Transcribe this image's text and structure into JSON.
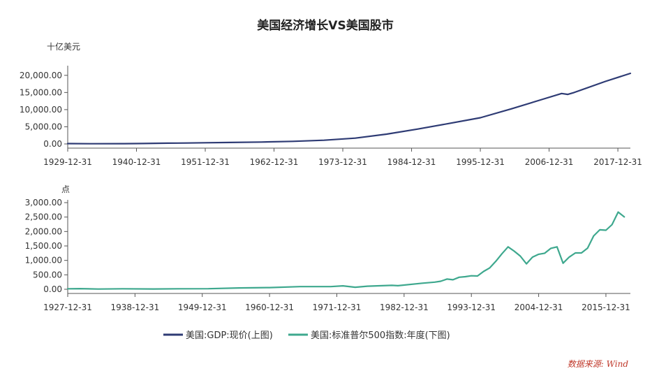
{
  "title": "美国经济增长VS美国股市",
  "source": "数据来源: Wind",
  "colors": {
    "gdp": "#2e3b74",
    "sp500": "#3ea88e",
    "axis": "#555555",
    "source": "#c0392b"
  },
  "chart_data": [
    {
      "type": "line",
      "panel": "top",
      "y_unit_label": "十亿美元",
      "ylim": [
        0,
        22000
      ],
      "yticks": [
        0,
        5000,
        10000,
        15000,
        20000
      ],
      "ytick_labels": [
        "0.00",
        "5,000.00",
        "10,000.00",
        "15,000.00",
        "20,000.00"
      ],
      "x_range": [
        1929,
        2019
      ],
      "xticks": [
        1929,
        1940,
        1951,
        1962,
        1973,
        1984,
        1995,
        2006,
        2017
      ],
      "xtick_labels": [
        "1929-12-31",
        "1940-12-31",
        "1951-12-31",
        "1962-12-31",
        "1973-12-31",
        "1984-12-31",
        "1995-12-31",
        "2006-12-31",
        "2017-12-31"
      ],
      "grid": false,
      "series": [
        {
          "name": "美国:GDP:现价(上图)",
          "color": "#2e3b74",
          "x": [
            1929,
            1933,
            1938,
            1941,
            1945,
            1948,
            1951,
            1955,
            1960,
            1965,
            1970,
            1975,
            1980,
            1985,
            1990,
            1995,
            2000,
            2005,
            2008,
            2009,
            2010,
            2015,
            2019
          ],
          "y": [
            105,
            57,
            87,
            129,
            228,
            275,
            348,
            426,
            543,
            744,
            1073,
            1685,
            2857,
            4339,
            5963,
            7640,
            10252,
            13037,
            14712,
            14449,
            14992,
            18225,
            20580
          ]
        }
      ]
    },
    {
      "type": "line",
      "panel": "bottom",
      "y_unit_label": "点",
      "ylim": [
        0,
        3000
      ],
      "yticks": [
        0,
        500,
        1000,
        1500,
        2000,
        2500,
        3000
      ],
      "ytick_labels": [
        "0.00",
        "500.00",
        "1,000.00",
        "1,500.00",
        "2,000.00",
        "2,500.00",
        "3,000.00"
      ],
      "x_range": [
        1927,
        2019
      ],
      "xticks": [
        1927,
        1938,
        1949,
        1960,
        1971,
        1982,
        1993,
        2004,
        2015
      ],
      "xtick_labels": [
        "1927-12-31",
        "1938-12-31",
        "1949-12-31",
        "1960-12-31",
        "1971-12-31",
        "1982-12-31",
        "1993-12-31",
        "2004-12-31",
        "2015-12-31"
      ],
      "grid": false,
      "series": [
        {
          "name": "美国:标准普尔500指数:年度(下图)",
          "color": "#3ea88e",
          "x": [
            1927,
            1929,
            1932,
            1936,
            1941,
            1945,
            1950,
            1955,
            1960,
            1965,
            1970,
            1972,
            1974,
            1976,
            1980,
            1981,
            1985,
            1987,
            1988,
            1989,
            1990,
            1991,
            1992,
            1993,
            1994,
            1995,
            1996,
            1997,
            1998,
            1999,
            2000,
            2001,
            2002,
            2003,
            2004,
            2005,
            2006,
            2007,
            2008,
            2009,
            2010,
            2011,
            2012,
            2013,
            2014,
            2015,
            2016,
            2017,
            2018
          ],
          "y": [
            18,
            22,
            7,
            17,
            9,
            17,
            20,
            45,
            58,
            92,
            92,
            118,
            69,
            107,
            136,
            123,
            211,
            247,
            278,
            353,
            330,
            417,
            436,
            466,
            459,
            616,
            741,
            970,
            1229,
            1469,
            1320,
            1148,
            880,
            1112,
            1212,
            1248,
            1418,
            1468,
            903,
            1115,
            1258,
            1258,
            1426,
            1848,
            2059,
            2044,
            2239,
            2674,
            2507
          ]
        }
      ]
    }
  ],
  "legend": [
    {
      "label": "美国:GDP:现价(上图)",
      "color": "#2e3b74"
    },
    {
      "label": "美国:标准普尔500指数:年度(下图)",
      "color": "#3ea88e"
    }
  ]
}
